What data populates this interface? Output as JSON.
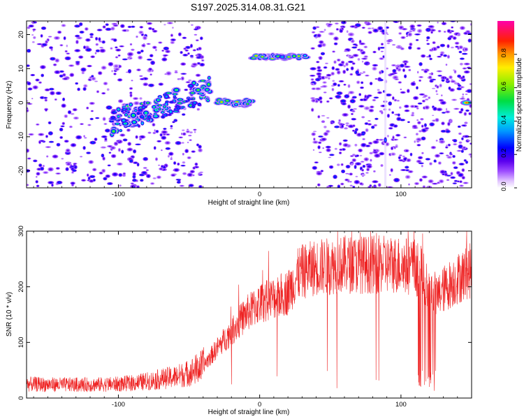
{
  "title": "S197.2025.314.08.31.G21",
  "chart_data": [
    {
      "type": "heatmap",
      "xlabel": "Height of straight line (km)",
      "ylabel": "Frequency (Hz)",
      "xlim": [
        -165,
        150
      ],
      "ylim": [
        -25,
        24
      ],
      "xticks": [
        -100,
        0,
        100
      ],
      "yticks": [
        -20,
        -10,
        0,
        10,
        20
      ],
      "colorbar": {
        "label": "Normalized spectral amplitude",
        "range": [
          0,
          1
        ],
        "ticks": [
          "0.0",
          "0.2",
          "0.4",
          "0.6",
          "0.8"
        ]
      },
      "features": [
        {
          "name": "noise floor left",
          "x": [
            -165,
            -40
          ],
          "y": [
            -25,
            24
          ],
          "amplitude": 0.25
        },
        {
          "name": "rising band",
          "x": [
            -105,
            -35
          ],
          "y": [
            -6,
            4
          ],
          "amplitude": 0.45
        },
        {
          "name": "ridge",
          "x": [
            -30,
            -5
          ],
          "y": [
            0,
            0
          ],
          "amplitude": 0.8
        },
        {
          "name": "upper band",
          "x": [
            -5,
            35
          ],
          "y": [
            13,
            14
          ],
          "amplitude": 0.8
        },
        {
          "name": "noise floor right",
          "x": [
            37,
            150
          ],
          "y": [
            -25,
            24
          ],
          "amplitude": 0.25
        },
        {
          "name": "spur",
          "x": [
            89,
            89
          ],
          "y": [
            -11,
            -11
          ],
          "amplitude": 0.35
        },
        {
          "name": "edge spot",
          "x": [
            143,
            150
          ],
          "y": [
            0,
            0
          ],
          "amplitude": 0.85
        }
      ]
    },
    {
      "type": "line",
      "xlabel": "Height of straight line (km)",
      "ylabel": "SNR (10 * v/v)",
      "xlim": [
        -165,
        150
      ],
      "ylim": [
        0,
        300
      ],
      "xticks": [
        -100,
        0,
        100
      ],
      "yticks": [
        0,
        100,
        200,
        300
      ],
      "series": [
        {
          "name": "SNR",
          "color": "#ee2222",
          "x": [
            -165,
            -140,
            -120,
            -100,
            -90,
            -80,
            -70,
            -60,
            -50,
            -40,
            -30,
            -20,
            -10,
            0,
            10,
            20,
            28,
            40,
            60,
            80,
            100,
            110,
            115,
            120,
            125,
            130,
            140,
            150
          ],
          "y": [
            25,
            24,
            24,
            25,
            27,
            30,
            34,
            38,
            45,
            58,
            90,
            120,
            150,
            170,
            180,
            190,
            225,
            235,
            240,
            240,
            240,
            235,
            225,
            185,
            180,
            195,
            215,
            230
          ]
        }
      ]
    }
  ]
}
